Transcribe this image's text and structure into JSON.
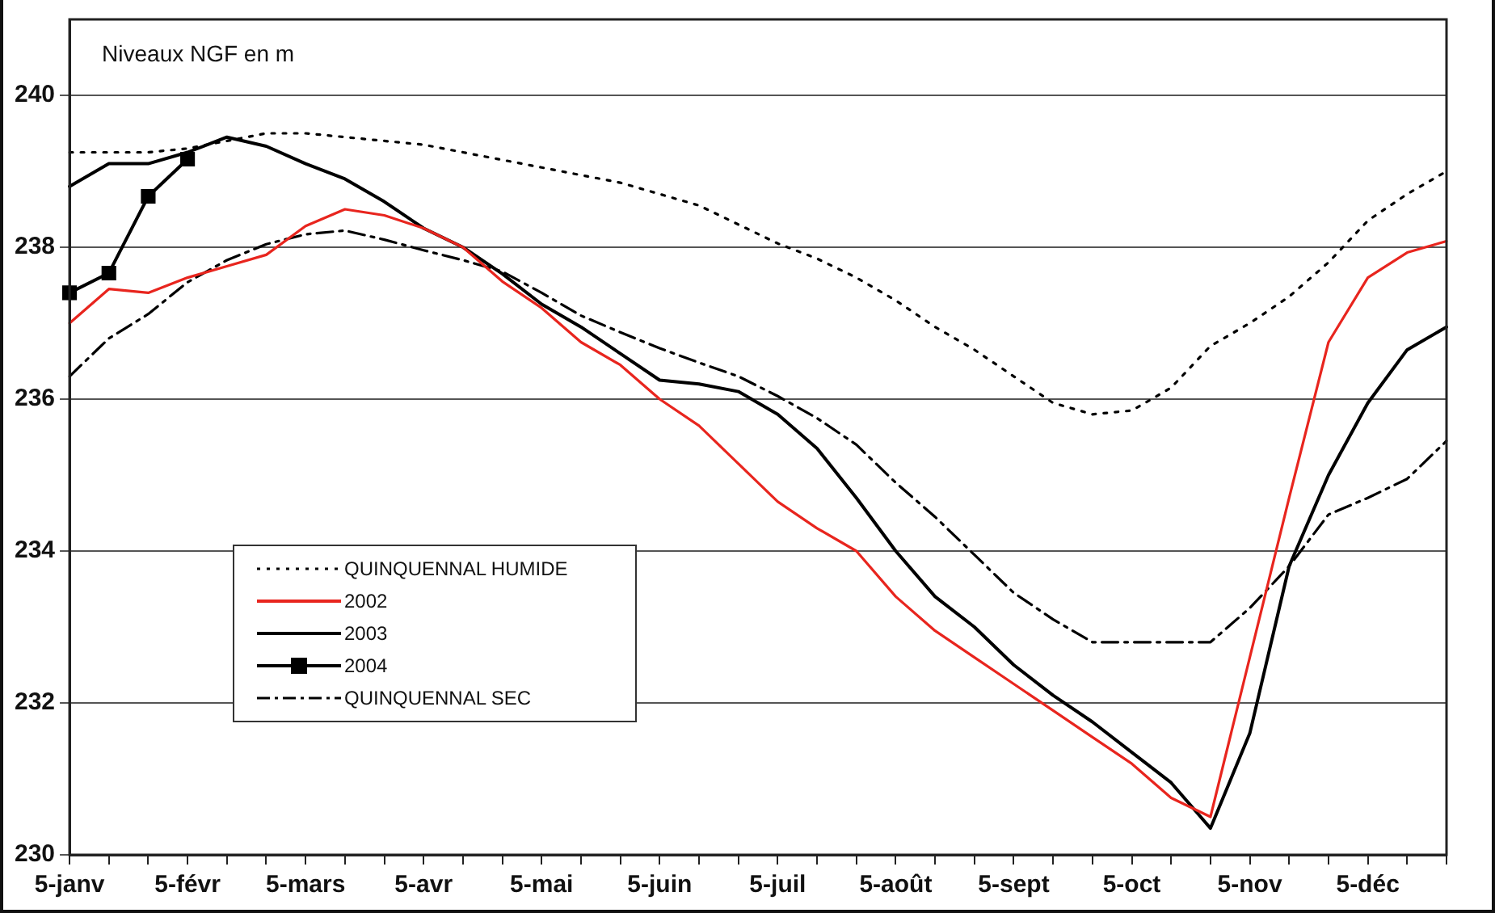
{
  "chart_data": {
    "type": "line",
    "ylabel": "Niveaux NGF en m",
    "categories": [
      "5-janv",
      null,
      null,
      "5-févr",
      null,
      null,
      "5-mars",
      null,
      null,
      "5-avr",
      null,
      null,
      "5-mai",
      null,
      null,
      "5-juin",
      null,
      null,
      "5-juil",
      null,
      null,
      "5-août",
      null,
      null,
      "5-sept",
      null,
      null,
      "5-oct",
      null,
      null,
      "5-nov",
      null,
      null,
      "5-déc",
      null,
      null
    ],
    "series": [
      {
        "name": "QUINQUENNAL HUMIDE",
        "color": "#000000",
        "line_style": "dotted",
        "marker": "none",
        "values": [
          239.25,
          239.25,
          239.25,
          239.3,
          239.4,
          239.5,
          239.5,
          239.45,
          239.4,
          239.35,
          239.25,
          239.15,
          239.05,
          238.95,
          238.85,
          238.7,
          238.55,
          238.3,
          238.05,
          237.85,
          237.6,
          237.3,
          236.95,
          236.65,
          236.3,
          235.95,
          235.8,
          235.85,
          236.15,
          236.7,
          237.0,
          237.35,
          237.8,
          238.35,
          238.7,
          239.0
        ]
      },
      {
        "name": "2002",
        "color": "#e8251e",
        "line_style": "solid",
        "marker": "none",
        "values": [
          237.0,
          237.45,
          237.4,
          237.6,
          237.75,
          237.9,
          238.28,
          238.5,
          238.42,
          238.25,
          238.0,
          237.55,
          237.2,
          236.75,
          236.45,
          236.0,
          235.65,
          235.15,
          234.65,
          234.3,
          234.0,
          233.4,
          232.95,
          232.6,
          232.25,
          231.9,
          231.55,
          231.2,
          230.75,
          230.5,
          232.6,
          234.7,
          236.75,
          237.6,
          237.93,
          238.08
        ]
      },
      {
        "name": "2003",
        "color": "#000000",
        "line_style": "solid",
        "marker": "none",
        "values": [
          238.8,
          239.1,
          239.1,
          239.25,
          239.45,
          239.33,
          239.1,
          238.9,
          238.6,
          238.25,
          238.0,
          237.65,
          237.25,
          236.95,
          236.6,
          236.25,
          236.2,
          236.1,
          235.8,
          235.35,
          234.7,
          234.0,
          233.4,
          233.0,
          232.5,
          232.1,
          231.75,
          231.35,
          230.95,
          230.35,
          231.6,
          233.8,
          235.0,
          235.95,
          236.65,
          236.95
        ]
      },
      {
        "name": "2004",
        "color": "#000000",
        "line_style": "solid",
        "marker": "square",
        "values": [
          237.4,
          237.66,
          238.67,
          239.16,
          null,
          null,
          null,
          null,
          null,
          null,
          null,
          null,
          null,
          null,
          null,
          null,
          null,
          null,
          null,
          null,
          null,
          null,
          null,
          null,
          null,
          null,
          null,
          null,
          null,
          null,
          null,
          null,
          null,
          null,
          null,
          null
        ]
      },
      {
        "name": "QUINQUENNAL SEC",
        "color": "#000000",
        "line_style": "dashed",
        "marker": "none",
        "values": [
          236.3,
          236.8,
          237.12,
          237.54,
          237.83,
          238.04,
          238.17,
          238.22,
          238.1,
          237.96,
          237.83,
          237.68,
          237.4,
          237.1,
          236.88,
          236.67,
          236.48,
          236.3,
          236.04,
          235.75,
          235.4,
          234.9,
          234.45,
          233.95,
          233.45,
          233.1,
          232.8,
          232.8,
          232.8,
          232.8,
          233.25,
          233.8,
          234.48,
          234.7,
          234.95,
          235.45
        ]
      }
    ],
    "ylim": [
      230,
      241
    ],
    "yticks": [
      230,
      232,
      234,
      236,
      238,
      240
    ],
    "grid": "y",
    "legend": "bottom left"
  }
}
